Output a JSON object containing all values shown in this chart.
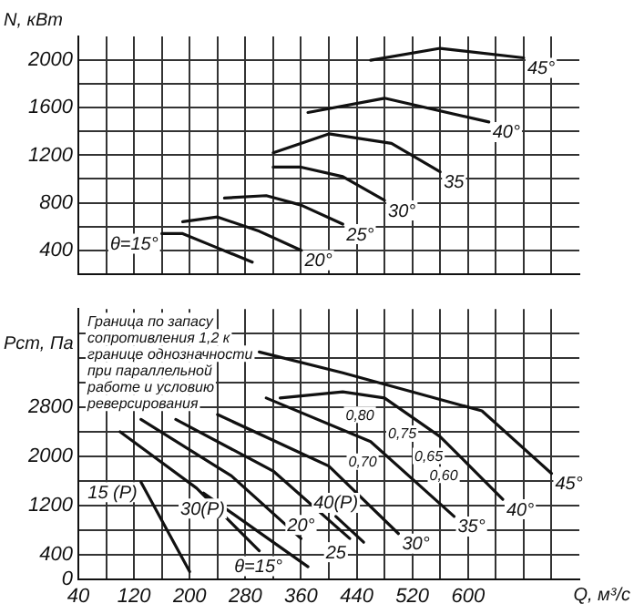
{
  "chart_data": [
    {
      "type": "line",
      "ylabel": "N, кВт",
      "xlim": [
        40,
        760
      ],
      "ylim": [
        200,
        2200
      ],
      "xticks": [
        40,
        {
          "value": 80,
          "label": null
        },
        120,
        {
          "value": 160,
          "label": null
        },
        200,
        {
          "value": 240,
          "label": null
        },
        280,
        {
          "value": 320,
          "label": null
        },
        360,
        {
          "value": 400,
          "label": null
        },
        440,
        {
          "value": 480,
          "label": null
        },
        520,
        {
          "value": 560,
          "label": null
        },
        600,
        {
          "value": 640,
          "label": null
        },
        {
          "value": 680,
          "label": null
        },
        {
          "value": 720,
          "label": null
        }
      ],
      "yticks": [
        400,
        {
          "value": 600,
          "label": null
        },
        800,
        {
          "value": 1000,
          "label": null
        },
        1200,
        {
          "value": 1400,
          "label": null
        },
        1600,
        {
          "value": 1800,
          "label": null
        },
        2000
      ],
      "tick_labels": "y",
      "grid": true,
      "marker": "none",
      "line_style": "solid",
      "series": [
        {
          "name": "45°",
          "color": "#111111",
          "x": [
            460,
            560,
            680
          ],
          "values": [
            2000,
            2100,
            2020
          ]
        },
        {
          "name": "40°",
          "color": "#111111",
          "x": [
            370,
            480,
            630
          ],
          "values": [
            1560,
            1680,
            1480
          ]
        },
        {
          "name": "35",
          "color": "#111111",
          "x": [
            320,
            400,
            490,
            560
          ],
          "values": [
            1220,
            1380,
            1300,
            1060
          ]
        },
        {
          "name": "30°",
          "color": "#111111",
          "x": [
            320,
            360,
            420,
            480
          ],
          "values": [
            1100,
            1100,
            1020,
            820
          ]
        },
        {
          "name": "25°",
          "color": "#111111",
          "x": [
            250,
            310,
            360,
            420
          ],
          "values": [
            840,
            860,
            780,
            620
          ]
        },
        {
          "name": "20°",
          "color": "#111111",
          "x": [
            190,
            240,
            300,
            360
          ],
          "values": [
            640,
            680,
            560,
            400
          ]
        },
        {
          "name": "θ=15°",
          "color": "#111111",
          "x": [
            160,
            190,
            240,
            290
          ],
          "values": [
            540,
            540,
            420,
            300
          ]
        }
      ]
    },
    {
      "type": "line",
      "ylabel": "Pст, Па",
      "xlabel": "Q, м³/с",
      "xlim": [
        40,
        760
      ],
      "ylim": [
        0,
        4400
      ],
      "xticks": [
        40,
        {
          "value": 80,
          "label": null
        },
        120,
        {
          "value": 160,
          "label": null
        },
        200,
        {
          "value": 240,
          "label": null
        },
        280,
        {
          "value": 320,
          "label": null
        },
        360,
        {
          "value": 400,
          "label": null
        },
        440,
        {
          "value": 480,
          "label": null
        },
        520,
        {
          "value": 560,
          "label": null
        },
        600,
        {
          "value": 640,
          "label": null
        },
        {
          "value": 680,
          "label": null
        },
        {
          "value": 720,
          "label": null
        }
      ],
      "yticks": [
        0,
        400,
        {
          "value": 800,
          "label": null
        },
        1200,
        {
          "value": 1600,
          "label": null
        },
        2000,
        {
          "value": 2400,
          "label": null
        },
        2800,
        {
          "value": 3200,
          "label": null
        },
        {
          "value": 3600,
          "label": null
        },
        {
          "value": 4000,
          "label": null
        }
      ],
      "grid": true,
      "marker": "none",
      "line_style": "solid",
      "series": [
        {
          "name": "45°",
          "color": "#111111",
          "x": [
            300,
            420,
            620,
            720
          ],
          "values": [
            3700,
            3360,
            2740,
            1720
          ]
        },
        {
          "name": "40°",
          "color": "#111111",
          "x": [
            330,
            420,
            480,
            560,
            650
          ],
          "values": [
            2950,
            3050,
            2950,
            2320,
            1300
          ]
        },
        {
          "name": "35°",
          "color": "#111111",
          "x": [
            310,
            460,
            580
          ],
          "values": [
            2950,
            2240,
            1020
          ]
        },
        {
          "name": "30°",
          "color": "#111111",
          "x": [
            240,
            400,
            500
          ],
          "values": [
            2680,
            1840,
            740
          ]
        },
        {
          "name": "25",
          "color": "#111111",
          "x": [
            180,
            320,
            430
          ],
          "values": [
            2600,
            1760,
            660
          ]
        },
        {
          "name": "20°",
          "color": "#111111",
          "x": [
            130,
            260,
            360
          ],
          "values": [
            2600,
            1680,
            660
          ]
        },
        {
          "name": "θ=15°",
          "color": "#111111",
          "x": [
            100,
            210,
            300
          ],
          "values": [
            2400,
            1480,
            460
          ]
        },
        {
          "name": "15 (P)",
          "color": "#111111",
          "x": [
            130,
            200
          ],
          "values": [
            1580,
            120
          ]
        },
        {
          "name": "30(P)",
          "color": "#111111",
          "x": [
            220,
            370
          ],
          "values": [
            1400,
            200
          ]
        },
        {
          "name": "40(P)",
          "color": "#111111",
          "x": [
            410,
            450
          ],
          "values": [
            1020,
            600
          ]
        }
      ],
      "annotations": [
        "Граница по запасу сопротивления 1,2 к границе однозначности при параллельной работе и условию реверсирования",
        "0,80",
        "0,75",
        "0,70",
        "0,65",
        "0,60"
      ]
    }
  ]
}
